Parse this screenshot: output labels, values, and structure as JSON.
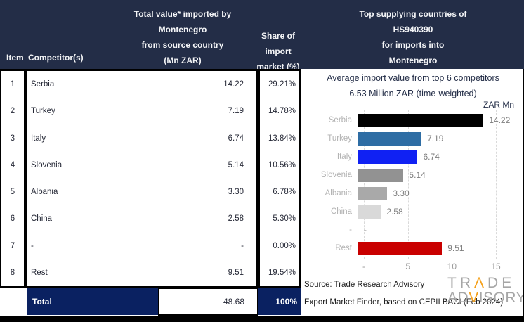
{
  "header": {
    "item": "Item",
    "competitor": "Competitor(s)",
    "value_col_lines": [
      "Total value* imported by",
      "Montenegro",
      "from source country",
      "(Mn ZAR)"
    ],
    "share_col_lines": [
      "Share of",
      "import",
      "market (%)"
    ],
    "chart_col_lines": [
      "Top supplying countries of",
      "HS940390",
      "for imports into",
      "Montenegro"
    ]
  },
  "table": {
    "rows": [
      {
        "item": "1",
        "competitor": "Serbia",
        "value": "14.22",
        "share": "29.21%"
      },
      {
        "item": "2",
        "competitor": "Turkey",
        "value": "7.19",
        "share": "14.78%"
      },
      {
        "item": "3",
        "competitor": "Italy",
        "value": "6.74",
        "share": "13.84%"
      },
      {
        "item": "4",
        "competitor": "Slovenia",
        "value": "5.14",
        "share": "10.56%"
      },
      {
        "item": "5",
        "competitor": "Albania",
        "value": "3.30",
        "share": "6.78%"
      },
      {
        "item": "6",
        "competitor": "China",
        "value": "2.58",
        "share": "5.30%"
      },
      {
        "item": "7",
        "competitor": "-",
        "value": "-",
        "share": "0.00%"
      },
      {
        "item": "8",
        "competitor": "Rest",
        "value": "9.51",
        "share": "19.54%"
      }
    ],
    "total": {
      "label": "Total",
      "value": "48.68",
      "share": "100%"
    }
  },
  "chart_data": {
    "type": "bar",
    "orientation": "horizontal",
    "title": "Average import value from top 6 competitors",
    "subtitle": "6.53 Million ZAR (time-weighted)",
    "unit_label": "ZAR Mn",
    "categories": [
      "Serbia",
      "Turkey",
      "Italy",
      "Slovenia",
      "Albania",
      "China",
      "-",
      "Rest"
    ],
    "values": [
      14.22,
      7.19,
      6.74,
      5.14,
      3.3,
      2.58,
      null,
      9.51
    ],
    "value_labels": [
      "14.22",
      "7.19",
      "6.74",
      "5.14",
      "3.30",
      "2.58",
      "-",
      "9.51"
    ],
    "bar_colors": [
      "#000000",
      "#2e6da4",
      "#1021f3",
      "#929292",
      "#a9a9a9",
      "#d9d9d9",
      null,
      "#c90000"
    ],
    "xlim": [
      0,
      15
    ],
    "xticks": [
      {
        "value": 0,
        "label": "-"
      },
      {
        "value": 5,
        "label": "5"
      },
      {
        "value": 10,
        "label": "10"
      },
      {
        "value": 15,
        "label": "15"
      }
    ],
    "grid": "vertical-dashed"
  },
  "footer": {
    "source_line1": "Source: Trade Research Advisory",
    "source_line2": "Export Market Finder, based on CEPII BACI (Feb 2024)",
    "logo_line1": {
      "pre": "TR",
      "accent": "Λ",
      "post": "DE"
    },
    "logo_line2": {
      "pre": "AD",
      "accent": "V",
      "post": "ISORY"
    }
  },
  "colors": {
    "header_bg": "#232d47",
    "total_bg": "#0a2161",
    "logo_gray": "#a6a6a6",
    "logo_orange": "#f5a11c",
    "rest_red": "#c90000",
    "turkey_blue": "#2e6da4",
    "italy_blue": "#1021f3"
  }
}
